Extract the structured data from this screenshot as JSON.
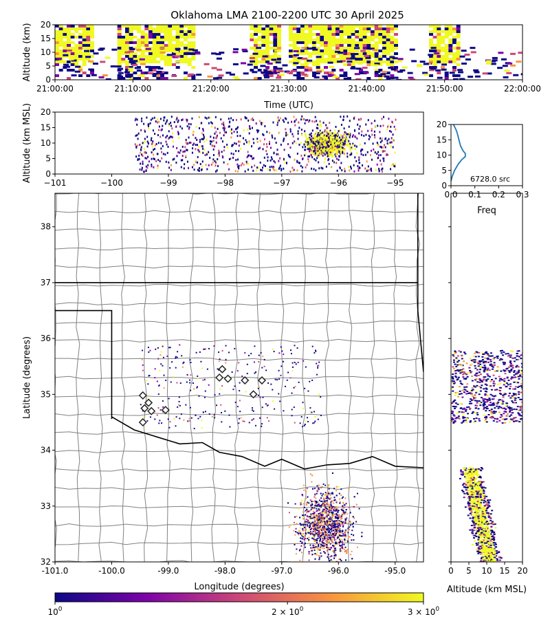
{
  "title": "Oklahoma LMA 2100-2200 UTC 30 April 2025",
  "colors": {
    "state_border": "#000000",
    "county_border": "#808080",
    "colormap": [
      "#0d0887",
      "#7e03a8",
      "#cc4778",
      "#f89540",
      "#f0f921"
    ],
    "station_marker": "#222222",
    "histogram_line": "#1f77b4"
  },
  "colorbar": {
    "tick_labels": [
      "10",
      "2 × 10",
      "3 × 10"
    ],
    "tick_exponents": [
      "0",
      "0",
      "0"
    ],
    "range": [
      1,
      3
    ],
    "scale": "log"
  },
  "chart_data": [
    {
      "name": "time-height",
      "type": "heatmap",
      "xlabel": "Time (UTC)",
      "ylabel": "Altitude (km)",
      "xticks": [
        "21:00:00",
        "21:10:00",
        "21:20:00",
        "21:30:00",
        "21:40:00",
        "21:50:00",
        "22:00:00"
      ],
      "yticks": [
        "0",
        "5",
        "10",
        "15",
        "20"
      ],
      "xlim": [
        "21:00:00",
        "22:00:00"
      ],
      "ylim": [
        0,
        20
      ],
      "active_intervals": [
        [
          "21:00:00",
          "21:05:00"
        ],
        [
          "21:08:00",
          "21:18:00"
        ],
        [
          "21:25:00",
          "21:29:00"
        ],
        [
          "21:30:00",
          "21:44:00"
        ],
        [
          "21:48:00",
          "21:52:00"
        ]
      ]
    },
    {
      "name": "longitude-altitude",
      "type": "scatter",
      "xlabel": "",
      "ylabel": "Altitude (km MSL)",
      "xticks": [
        "−101",
        "−100",
        "−99",
        "−98",
        "−97",
        "−96",
        "−95"
      ],
      "yticks": [
        "0",
        "5",
        "10",
        "15",
        "20"
      ],
      "xlim": [
        -101,
        -94.5
      ],
      "ylim": [
        0,
        20
      ],
      "core": {
        "lon": -96.2,
        "alt": 10
      }
    },
    {
      "name": "altitude-histogram",
      "type": "line",
      "xlabel": "Freq",
      "xticks": [
        "0.0",
        "0.1",
        "0.2",
        "0.3"
      ],
      "yticks": [
        "0",
        "5",
        "10",
        "15",
        "20"
      ],
      "xlim": [
        0,
        0.3
      ],
      "ylim": [
        0,
        20
      ],
      "annotation": "6728.0 src",
      "x": [
        0.0,
        0.005,
        0.015,
        0.03,
        0.045,
        0.06,
        0.06,
        0.05,
        0.04,
        0.035,
        0.03,
        0.025,
        0.02,
        0.01
      ],
      "y": [
        1.5,
        3,
        5,
        7,
        8.5,
        9.5,
        10.5,
        11.5,
        13,
        14.5,
        16,
        17.5,
        18.5,
        20
      ]
    },
    {
      "name": "plan-view",
      "type": "scatter",
      "xlabel": "Longitude (degrees)",
      "ylabel": "Latitude (degrees)",
      "xticks": [
        "-101.0",
        "-100.0",
        "-99.0",
        "-98.0",
        "-97.0",
        "-96.0",
        "-95.0"
      ],
      "yticks": [
        "32",
        "33",
        "34",
        "35",
        "36",
        "37",
        "38"
      ],
      "xlim": [
        -101,
        -94.5
      ],
      "ylim": [
        32,
        38.6
      ],
      "stations": [
        {
          "lon": -99.45,
          "lat": 34.98
        },
        {
          "lon": -99.35,
          "lat": 34.85
        },
        {
          "lon": -99.42,
          "lat": 34.75
        },
        {
          "lon": -99.3,
          "lat": 34.7
        },
        {
          "lon": -99.05,
          "lat": 34.72
        },
        {
          "lon": -99.45,
          "lat": 34.5
        },
        {
          "lon": -98.05,
          "lat": 35.45
        },
        {
          "lon": -98.1,
          "lat": 35.3
        },
        {
          "lon": -97.95,
          "lat": 35.28
        },
        {
          "lon": -97.65,
          "lat": 35.25
        },
        {
          "lon": -97.35,
          "lat": 35.25
        },
        {
          "lon": -97.5,
          "lat": 35.0
        }
      ]
    },
    {
      "name": "altitude-latitude",
      "type": "scatter",
      "xlabel": "Altitude (km MSL)",
      "xticks": [
        "0",
        "5",
        "10",
        "15",
        "20"
      ],
      "xlim": [
        0,
        20
      ],
      "ylim": [
        32,
        38.6
      ]
    }
  ]
}
